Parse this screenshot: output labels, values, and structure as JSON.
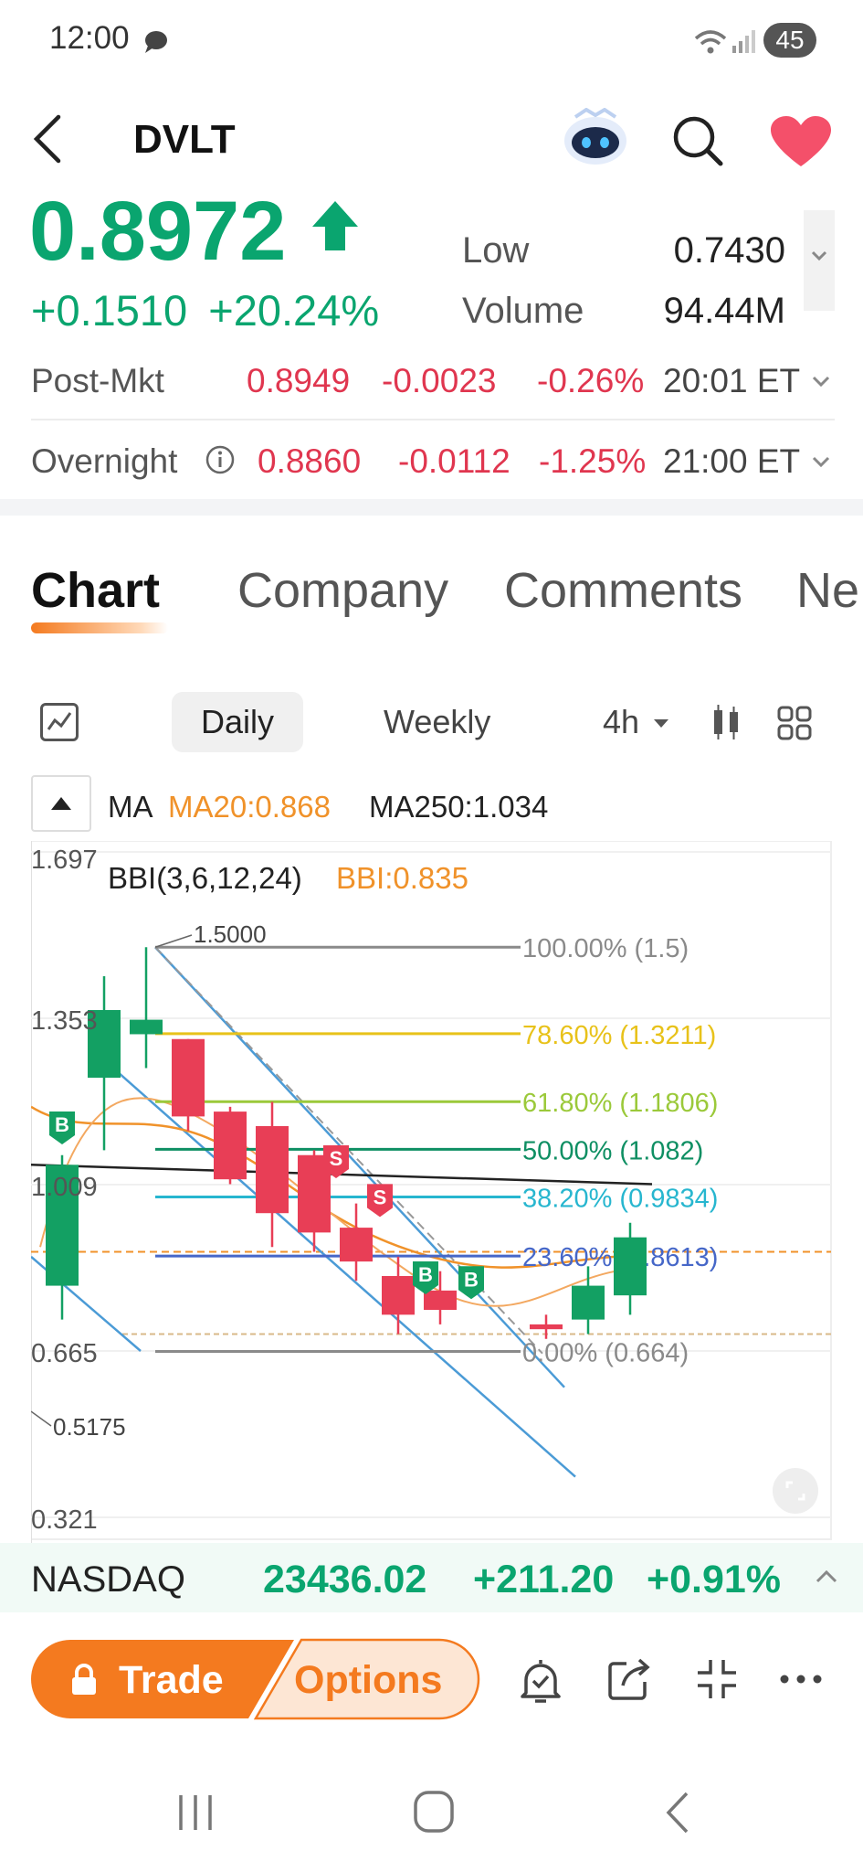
{
  "status": {
    "time": "12:00",
    "battery": "45"
  },
  "header": {
    "ticker": "DVLT"
  },
  "quote": {
    "price": "0.8972",
    "change": "+0.1510",
    "change_pct": "+20.24%",
    "low_label": "Low",
    "low_value": "0.7430",
    "volume_label": "Volume",
    "volume_value": "94.44M"
  },
  "post_market": {
    "label": "Post-Mkt",
    "price": "0.8949",
    "change": "-0.0023",
    "change_pct": "-0.26%",
    "time": "20:01 ET"
  },
  "overnight": {
    "label": "Overnight",
    "price": "0.8860",
    "change": "-0.0112",
    "change_pct": "-1.25%",
    "time": "21:00 ET"
  },
  "tabs": [
    "Chart",
    "Company",
    "Comments",
    "Ne"
  ],
  "periods": {
    "daily": "Daily",
    "weekly": "Weekly",
    "intraday": "4h"
  },
  "indicators": {
    "ma_label": "MA",
    "ma20": "MA20:0.868",
    "ma250": "MA250:1.034",
    "bbi_label": "BBI(3,6,12,24)",
    "bbi_value": "BBI:0.835"
  },
  "chart_data": {
    "type": "candlestick",
    "y_ticks": [
      "1.697",
      "1.353",
      "1.009",
      "0.665",
      "0.321"
    ],
    "high_label": "1.5000",
    "low_label": "0.5175",
    "fib_levels": [
      {
        "label": "100.00% (1.5)",
        "color": "#8a8a8a"
      },
      {
        "label": "78.60% (1.3211)",
        "color": "#e8c21a"
      },
      {
        "label": "61.80% (1.1806)",
        "color": "#9bc93a"
      },
      {
        "label": "50.00% (1.082)",
        "color": "#0f8f63"
      },
      {
        "label": "38.20% (0.9834)",
        "color": "#27b6cf"
      },
      {
        "label": "23.60% (0.8613)",
        "color": "#4667c8"
      },
      {
        "label": "0.00% (0.664)",
        "color": "#8a8a8a"
      }
    ],
    "candles": [
      {
        "o": 0.8,
        "h": 1.07,
        "l": 0.73,
        "c": 1.05
      },
      {
        "o": 1.23,
        "h": 1.44,
        "l": 1.08,
        "c": 1.37
      },
      {
        "o": 1.32,
        "h": 1.5,
        "l": 1.25,
        "c": 1.35
      },
      {
        "o": 1.31,
        "h": 1.31,
        "l": 1.12,
        "c": 1.15
      },
      {
        "o": 1.16,
        "h": 1.17,
        "l": 1.01,
        "c": 1.02
      },
      {
        "o": 1.13,
        "h": 1.18,
        "l": 0.88,
        "c": 0.95
      },
      {
        "o": 1.07,
        "h": 1.08,
        "l": 0.87,
        "c": 0.91
      },
      {
        "o": 0.92,
        "h": 0.97,
        "l": 0.81,
        "c": 0.85
      },
      {
        "o": 0.82,
        "h": 0.86,
        "l": 0.7,
        "c": 0.74
      },
      {
        "o": 0.79,
        "h": 0.83,
        "l": 0.72,
        "c": 0.75
      },
      {
        "o": 0.72,
        "h": 0.74,
        "l": 0.69,
        "c": 0.71
      },
      {
        "o": 0.73,
        "h": 0.84,
        "l": 0.7,
        "c": 0.8
      },
      {
        "o": 0.78,
        "h": 0.93,
        "l": 0.74,
        "c": 0.9
      }
    ]
  },
  "nasdaq": {
    "label": "NASDAQ",
    "value": "23436.02",
    "change": "+211.20",
    "change_pct": "+0.91%"
  },
  "actions": {
    "trade": "Trade",
    "options": "Options"
  }
}
